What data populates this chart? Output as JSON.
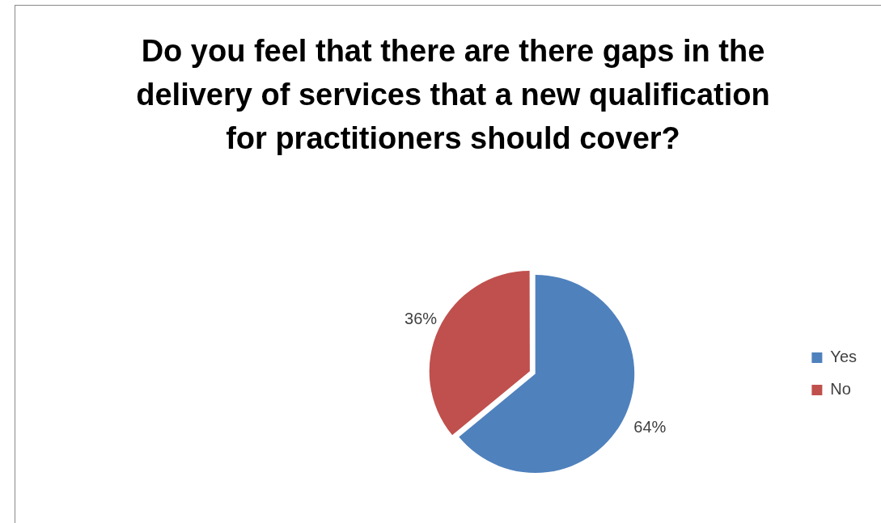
{
  "chart_data": {
    "type": "pie",
    "title": "Do you feel that there are there gaps in the delivery of services that a new qualification for practitioners should cover?",
    "categories": [
      "Yes",
      "No"
    ],
    "values": [
      64,
      36
    ],
    "colors": [
      "#4f81bd",
      "#c0504d"
    ],
    "value_labels": [
      "64%",
      "36%"
    ],
    "legend": "right"
  }
}
